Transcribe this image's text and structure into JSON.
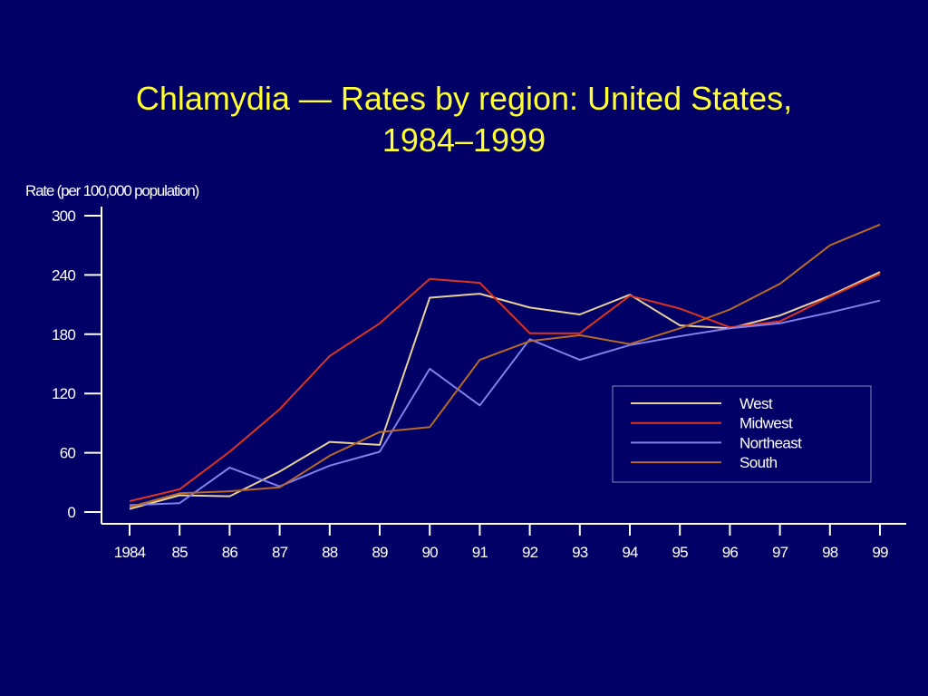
{
  "chart_data": {
    "type": "line",
    "title_line1": "Chlamydia  —  Rates by region: United States,",
    "title_line2": "1984–1999",
    "ylabel": "Rate (per 100,000 population)",
    "xlabel": "",
    "ylim": [
      0,
      300
    ],
    "yticks": [
      "0",
      "60",
      "120",
      "180",
      "240",
      "300"
    ],
    "categories": [
      "1984",
      "85",
      "86",
      "87",
      "88",
      "89",
      "90",
      "91",
      "92",
      "93",
      "94",
      "95",
      "96",
      "97",
      "98",
      "99"
    ],
    "legend_position": "center-right",
    "grid": false,
    "series": [
      {
        "name": "West",
        "color": "#e8d09a",
        "values": [
          3,
          17,
          16,
          41,
          71,
          68,
          217,
          221,
          207,
          200,
          220,
          189,
          186,
          199,
          219,
          243
        ]
      },
      {
        "name": "Midwest",
        "color": "#dd3322",
        "values": [
          11,
          23,
          61,
          104,
          158,
          191,
          236,
          232,
          181,
          181,
          219,
          206,
          187,
          193,
          218,
          241
        ]
      },
      {
        "name": "Northeast",
        "color": "#8080ee",
        "values": [
          7,
          9,
          45,
          26,
          47,
          61,
          145,
          108,
          175,
          154,
          169,
          178,
          186,
          191,
          202,
          214
        ]
      },
      {
        "name": "South",
        "color": "#b86a28",
        "values": [
          5,
          19,
          21,
          25,
          57,
          81,
          86,
          154,
          173,
          179,
          170,
          186,
          205,
          231,
          270,
          291
        ]
      }
    ]
  }
}
